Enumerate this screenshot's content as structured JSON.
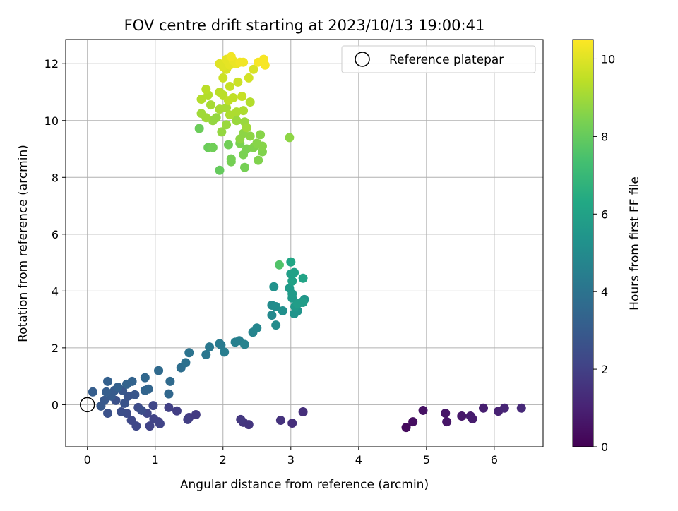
{
  "chart_data": {
    "type": "scatter",
    "title": "FOV centre drift starting at 2023/10/13 19:00:41",
    "xlabel": "Angular distance from reference (arcmin)",
    "ylabel": "Rotation from reference (arcmin)",
    "xlim": [
      -0.32,
      6.72
    ],
    "ylim": [
      -1.48,
      12.85
    ],
    "xticks": [
      "0",
      "1",
      "2",
      "3",
      "4",
      "5",
      "6"
    ],
    "yticks": [
      "0",
      "2",
      "4",
      "6",
      "8",
      "10",
      "12"
    ],
    "grid": true,
    "legend": {
      "placement": "top-right",
      "entries": [
        "Reference platepar"
      ]
    },
    "reference_point": {
      "x": 0,
      "y": 0
    },
    "colorbar": {
      "label": "Hours from first FF file",
      "range": [
        0,
        10.5
      ],
      "ticks": [
        "0",
        "2",
        "4",
        "6",
        "8",
        "10"
      ],
      "colormap": "viridis"
    },
    "points": [
      {
        "x": 4.7,
        "y": -0.8,
        "h": 0.3
      },
      {
        "x": 4.8,
        "y": -0.6,
        "h": 0.4
      },
      {
        "x": 4.95,
        "y": -0.2,
        "h": 0.5
      },
      {
        "x": 5.28,
        "y": -0.3,
        "h": 0.6
      },
      {
        "x": 5.3,
        "y": -0.6,
        "h": 0.6
      },
      {
        "x": 5.52,
        "y": -0.4,
        "h": 0.7
      },
      {
        "x": 5.65,
        "y": -0.4,
        "h": 0.8
      },
      {
        "x": 5.68,
        "y": -0.5,
        "h": 0.8
      },
      {
        "x": 5.84,
        "y": -0.12,
        "h": 0.9
      },
      {
        "x": 6.06,
        "y": -0.23,
        "h": 1.0
      },
      {
        "x": 6.15,
        "y": -0.12,
        "h": 1.1
      },
      {
        "x": 6.4,
        "y": -0.12,
        "h": 1.2
      },
      {
        "x": 3.18,
        "y": -0.25,
        "h": 1.4
      },
      {
        "x": 3.02,
        "y": -0.65,
        "h": 1.4
      },
      {
        "x": 2.85,
        "y": -0.55,
        "h": 1.5
      },
      {
        "x": 2.38,
        "y": -0.7,
        "h": 1.6
      },
      {
        "x": 2.3,
        "y": -0.62,
        "h": 1.6
      },
      {
        "x": 2.26,
        "y": -0.52,
        "h": 1.7
      },
      {
        "x": 1.6,
        "y": -0.35,
        "h": 1.8
      },
      {
        "x": 1.5,
        "y": -0.45,
        "h": 1.8
      },
      {
        "x": 1.48,
        "y": -0.52,
        "h": 1.9
      },
      {
        "x": 1.32,
        "y": -0.22,
        "h": 1.9
      },
      {
        "x": 1.2,
        "y": -0.1,
        "h": 2.0
      },
      {
        "x": 1.05,
        "y": -0.6,
        "h": 2.0
      },
      {
        "x": 1.07,
        "y": -0.67,
        "h": 2.1
      },
      {
        "x": 0.98,
        "y": -0.5,
        "h": 2.1
      },
      {
        "x": 0.92,
        "y": -0.75,
        "h": 2.1
      },
      {
        "x": 0.88,
        "y": -0.3,
        "h": 2.2
      },
      {
        "x": 0.97,
        "y": -0.03,
        "h": 2.2
      },
      {
        "x": 0.72,
        "y": -0.75,
        "h": 2.3
      },
      {
        "x": 0.65,
        "y": -0.55,
        "h": 2.3
      },
      {
        "x": 0.58,
        "y": -0.3,
        "h": 2.4
      },
      {
        "x": 0.75,
        "y": -0.1,
        "h": 2.4
      },
      {
        "x": 0.8,
        "y": -0.2,
        "h": 2.5
      },
      {
        "x": 0.5,
        "y": -0.25,
        "h": 2.5
      },
      {
        "x": 0.3,
        "y": -0.3,
        "h": 2.6
      },
      {
        "x": 0.42,
        "y": 0.15,
        "h": 2.6
      },
      {
        "x": 0.55,
        "y": 0.05,
        "h": 2.7
      },
      {
        "x": 0.6,
        "y": 0.3,
        "h": 2.7
      },
      {
        "x": 0.7,
        "y": 0.35,
        "h": 2.8
      },
      {
        "x": 0.52,
        "y": 0.5,
        "h": 2.8
      },
      {
        "x": 0.25,
        "y": 0.15,
        "h": 2.9
      },
      {
        "x": 0.2,
        "y": -0.05,
        "h": 2.9
      },
      {
        "x": 0.35,
        "y": 0.3,
        "h": 3.0
      },
      {
        "x": 0.4,
        "y": 0.5,
        "h": 3.0
      },
      {
        "x": 0.28,
        "y": 0.45,
        "h": 3.1
      },
      {
        "x": 0.08,
        "y": 0.45,
        "h": 3.1
      },
      {
        "x": 0.3,
        "y": 0.82,
        "h": 3.2
      },
      {
        "x": 0.45,
        "y": 0.62,
        "h": 3.2
      },
      {
        "x": 0.58,
        "y": 0.72,
        "h": 3.3
      },
      {
        "x": 0.66,
        "y": 0.82,
        "h": 3.3
      },
      {
        "x": 0.85,
        "y": 0.5,
        "h": 3.4
      },
      {
        "x": 0.9,
        "y": 0.55,
        "h": 3.4
      },
      {
        "x": 0.85,
        "y": 0.95,
        "h": 3.5
      },
      {
        "x": 1.2,
        "y": 0.38,
        "h": 3.5
      },
      {
        "x": 1.22,
        "y": 0.82,
        "h": 3.6
      },
      {
        "x": 1.05,
        "y": 1.2,
        "h": 3.6
      },
      {
        "x": 1.38,
        "y": 1.3,
        "h": 3.8
      },
      {
        "x": 1.45,
        "y": 1.48,
        "h": 3.9
      },
      {
        "x": 1.5,
        "y": 1.83,
        "h": 4.0
      },
      {
        "x": 1.75,
        "y": 1.76,
        "h": 4.1
      },
      {
        "x": 1.8,
        "y": 2.03,
        "h": 4.2
      },
      {
        "x": 1.95,
        "y": 2.15,
        "h": 4.3
      },
      {
        "x": 1.97,
        "y": 2.1,
        "h": 4.3
      },
      {
        "x": 2.02,
        "y": 1.85,
        "h": 4.4
      },
      {
        "x": 2.18,
        "y": 2.2,
        "h": 4.5
      },
      {
        "x": 2.24,
        "y": 2.25,
        "h": 4.5
      },
      {
        "x": 2.32,
        "y": 2.12,
        "h": 4.6
      },
      {
        "x": 2.44,
        "y": 2.55,
        "h": 4.7
      },
      {
        "x": 2.5,
        "y": 2.7,
        "h": 4.8
      },
      {
        "x": 2.72,
        "y": 3.15,
        "h": 4.9
      },
      {
        "x": 2.78,
        "y": 2.8,
        "h": 5.0
      },
      {
        "x": 2.72,
        "y": 3.5,
        "h": 5.0
      },
      {
        "x": 2.78,
        "y": 3.45,
        "h": 5.1
      },
      {
        "x": 2.88,
        "y": 3.3,
        "h": 5.2
      },
      {
        "x": 2.75,
        "y": 4.15,
        "h": 5.3
      },
      {
        "x": 3.05,
        "y": 3.2,
        "h": 5.4
      },
      {
        "x": 3.1,
        "y": 3.3,
        "h": 5.4
      },
      {
        "x": 3.15,
        "y": 3.6,
        "h": 5.5
      },
      {
        "x": 3.2,
        "y": 3.7,
        "h": 5.5
      },
      {
        "x": 3.02,
        "y": 3.75,
        "h": 5.6
      },
      {
        "x": 3.06,
        "y": 3.45,
        "h": 5.6
      },
      {
        "x": 2.98,
        "y": 4.1,
        "h": 5.7
      },
      {
        "x": 3.02,
        "y": 3.9,
        "h": 5.7
      },
      {
        "x": 3.1,
        "y": 3.55,
        "h": 5.8
      },
      {
        "x": 3.18,
        "y": 3.6,
        "h": 5.8
      },
      {
        "x": 3.0,
        "y": 4.6,
        "h": 5.9
      },
      {
        "x": 3.05,
        "y": 4.65,
        "h": 6.0
      },
      {
        "x": 3.02,
        "y": 4.35,
        "h": 6.0
      },
      {
        "x": 3.18,
        "y": 4.45,
        "h": 6.1
      },
      {
        "x": 3.0,
        "y": 5.02,
        "h": 6.2
      },
      {
        "x": 2.83,
        "y": 4.92,
        "h": 7.6
      },
      {
        "x": 1.95,
        "y": 8.25,
        "h": 8.0
      },
      {
        "x": 1.65,
        "y": 9.72,
        "h": 8.1
      },
      {
        "x": 1.78,
        "y": 9.05,
        "h": 8.1
      },
      {
        "x": 1.85,
        "y": 9.05,
        "h": 8.2
      },
      {
        "x": 2.08,
        "y": 9.15,
        "h": 8.2
      },
      {
        "x": 2.12,
        "y": 8.65,
        "h": 8.3
      },
      {
        "x": 2.12,
        "y": 8.55,
        "h": 8.3
      },
      {
        "x": 2.32,
        "y": 8.35,
        "h": 8.3
      },
      {
        "x": 2.3,
        "y": 8.8,
        "h": 8.4
      },
      {
        "x": 2.25,
        "y": 9.2,
        "h": 8.4
      },
      {
        "x": 2.35,
        "y": 9.0,
        "h": 8.4
      },
      {
        "x": 2.52,
        "y": 8.6,
        "h": 8.5
      },
      {
        "x": 2.58,
        "y": 8.9,
        "h": 8.5
      },
      {
        "x": 2.45,
        "y": 9.05,
        "h": 8.5
      },
      {
        "x": 2.5,
        "y": 9.2,
        "h": 8.6
      },
      {
        "x": 2.58,
        "y": 9.1,
        "h": 8.6
      },
      {
        "x": 2.55,
        "y": 9.5,
        "h": 8.6
      },
      {
        "x": 2.4,
        "y": 9.45,
        "h": 8.7
      },
      {
        "x": 2.3,
        "y": 9.55,
        "h": 8.7
      },
      {
        "x": 2.25,
        "y": 9.35,
        "h": 8.7
      },
      {
        "x": 2.98,
        "y": 9.4,
        "h": 8.7
      },
      {
        "x": 1.98,
        "y": 9.6,
        "h": 8.8
      },
      {
        "x": 1.85,
        "y": 10.0,
        "h": 8.8
      },
      {
        "x": 1.9,
        "y": 10.1,
        "h": 8.8
      },
      {
        "x": 2.05,
        "y": 9.85,
        "h": 8.9
      },
      {
        "x": 2.2,
        "y": 10.0,
        "h": 8.9
      },
      {
        "x": 2.32,
        "y": 9.95,
        "h": 8.9
      },
      {
        "x": 2.35,
        "y": 9.75,
        "h": 9.0
      },
      {
        "x": 1.68,
        "y": 10.25,
        "h": 9.0
      },
      {
        "x": 1.75,
        "y": 10.1,
        "h": 9.0
      },
      {
        "x": 1.82,
        "y": 10.55,
        "h": 9.1
      },
      {
        "x": 1.95,
        "y": 10.4,
        "h": 9.1
      },
      {
        "x": 2.05,
        "y": 10.45,
        "h": 9.1
      },
      {
        "x": 2.1,
        "y": 10.2,
        "h": 9.2
      },
      {
        "x": 2.2,
        "y": 10.3,
        "h": 9.2
      },
      {
        "x": 2.3,
        "y": 10.35,
        "h": 9.2
      },
      {
        "x": 2.4,
        "y": 10.65,
        "h": 9.3
      },
      {
        "x": 1.68,
        "y": 10.75,
        "h": 9.3
      },
      {
        "x": 1.78,
        "y": 10.9,
        "h": 9.3
      },
      {
        "x": 1.75,
        "y": 11.1,
        "h": 9.4
      },
      {
        "x": 1.95,
        "y": 11.0,
        "h": 9.4
      },
      {
        "x": 2.0,
        "y": 10.9,
        "h": 9.4
      },
      {
        "x": 2.08,
        "y": 10.7,
        "h": 9.5
      },
      {
        "x": 2.15,
        "y": 10.8,
        "h": 9.5
      },
      {
        "x": 2.28,
        "y": 10.85,
        "h": 9.6
      },
      {
        "x": 2.1,
        "y": 11.2,
        "h": 9.6
      },
      {
        "x": 2.22,
        "y": 11.35,
        "h": 9.7
      },
      {
        "x": 2.0,
        "y": 11.5,
        "h": 9.7
      },
      {
        "x": 2.38,
        "y": 11.5,
        "h": 9.8
      },
      {
        "x": 2.05,
        "y": 11.8,
        "h": 9.9
      },
      {
        "x": 2.45,
        "y": 11.8,
        "h": 9.9
      },
      {
        "x": 1.95,
        "y": 12.0,
        "h": 10.0
      },
      {
        "x": 2.0,
        "y": 11.9,
        "h": 10.0
      },
      {
        "x": 2.05,
        "y": 12.15,
        "h": 10.1
      },
      {
        "x": 2.1,
        "y": 11.95,
        "h": 10.1
      },
      {
        "x": 2.15,
        "y": 12.1,
        "h": 10.2
      },
      {
        "x": 2.2,
        "y": 12.0,
        "h": 10.2
      },
      {
        "x": 2.12,
        "y": 12.25,
        "h": 10.3
      },
      {
        "x": 2.25,
        "y": 12.05,
        "h": 10.3
      },
      {
        "x": 2.3,
        "y": 12.05,
        "h": 10.3
      },
      {
        "x": 2.52,
        "y": 12.05,
        "h": 10.4
      },
      {
        "x": 2.6,
        "y": 12.15,
        "h": 10.4
      },
      {
        "x": 2.62,
        "y": 11.95,
        "h": 10.4
      }
    ]
  }
}
